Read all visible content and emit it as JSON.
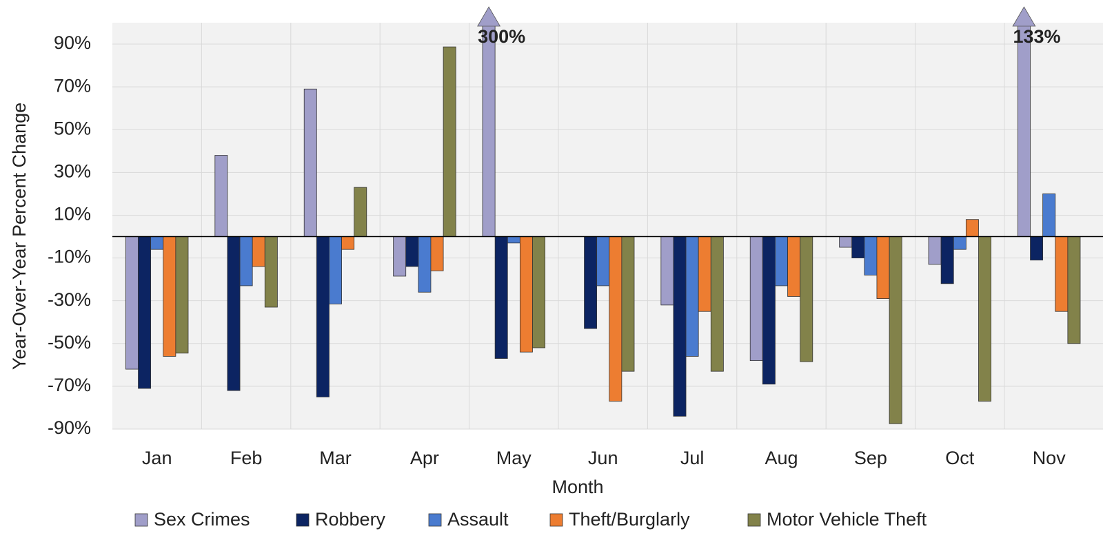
{
  "chart_data": {
    "type": "bar",
    "categories": [
      "Jan",
      "Feb",
      "Mar",
      "Apr",
      "May",
      "Jun",
      "Jul",
      "Aug",
      "Sep",
      "Oct",
      "Nov"
    ],
    "x_label": "Month",
    "y_label": "Year-Over-Year Percent Change",
    "ylim": [
      -90,
      100
    ],
    "yticks": [
      {
        "value": -90,
        "label": "-90%"
      },
      {
        "value": -70,
        "label": "-70%"
      },
      {
        "value": -50,
        "label": "-50%"
      },
      {
        "value": -30,
        "label": "-30%"
      },
      {
        "value": -10,
        "label": "-10%"
      },
      {
        "value": 10,
        "label": "10%"
      },
      {
        "value": 30,
        "label": "30%"
      },
      {
        "value": 50,
        "label": "50%"
      },
      {
        "value": 70,
        "label": "70%"
      },
      {
        "value": 90,
        "label": "90%"
      }
    ],
    "grid": true,
    "legend": "bottom",
    "series": [
      {
        "name": "Sex Crimes",
        "color": "#a09ec9",
        "values": [
          -62,
          38,
          69,
          -18.5,
          300,
          0,
          -32,
          -58,
          -5,
          -13,
          133
        ],
        "value_labels": [
          null,
          null,
          null,
          null,
          "300%",
          null,
          null,
          null,
          null,
          null,
          "133%"
        ]
      },
      {
        "name": "Robbery",
        "color": "#0c2462",
        "values": [
          -71,
          -72,
          -75,
          -14,
          -57,
          -43,
          -84,
          -69,
          -10,
          -22,
          -11
        ]
      },
      {
        "name": "Assault",
        "color": "#4a7bcf",
        "values": [
          -6,
          -23,
          -31.5,
          -26,
          -3,
          -23,
          -56,
          -23,
          -18,
          -6,
          20
        ]
      },
      {
        "name": "Theft/Burglarly",
        "color": "#ed7d31",
        "values": [
          -56,
          -14,
          -6,
          -16,
          -54,
          -77,
          -35,
          -28,
          -29,
          8,
          -35
        ]
      },
      {
        "name": "Motor Vehicle Theft",
        "color": "#82824a",
        "values": [
          -54.5,
          -33,
          23,
          88.7,
          -52,
          -63,
          -63,
          -58.5,
          -87.5,
          -77,
          -50
        ]
      }
    ]
  }
}
